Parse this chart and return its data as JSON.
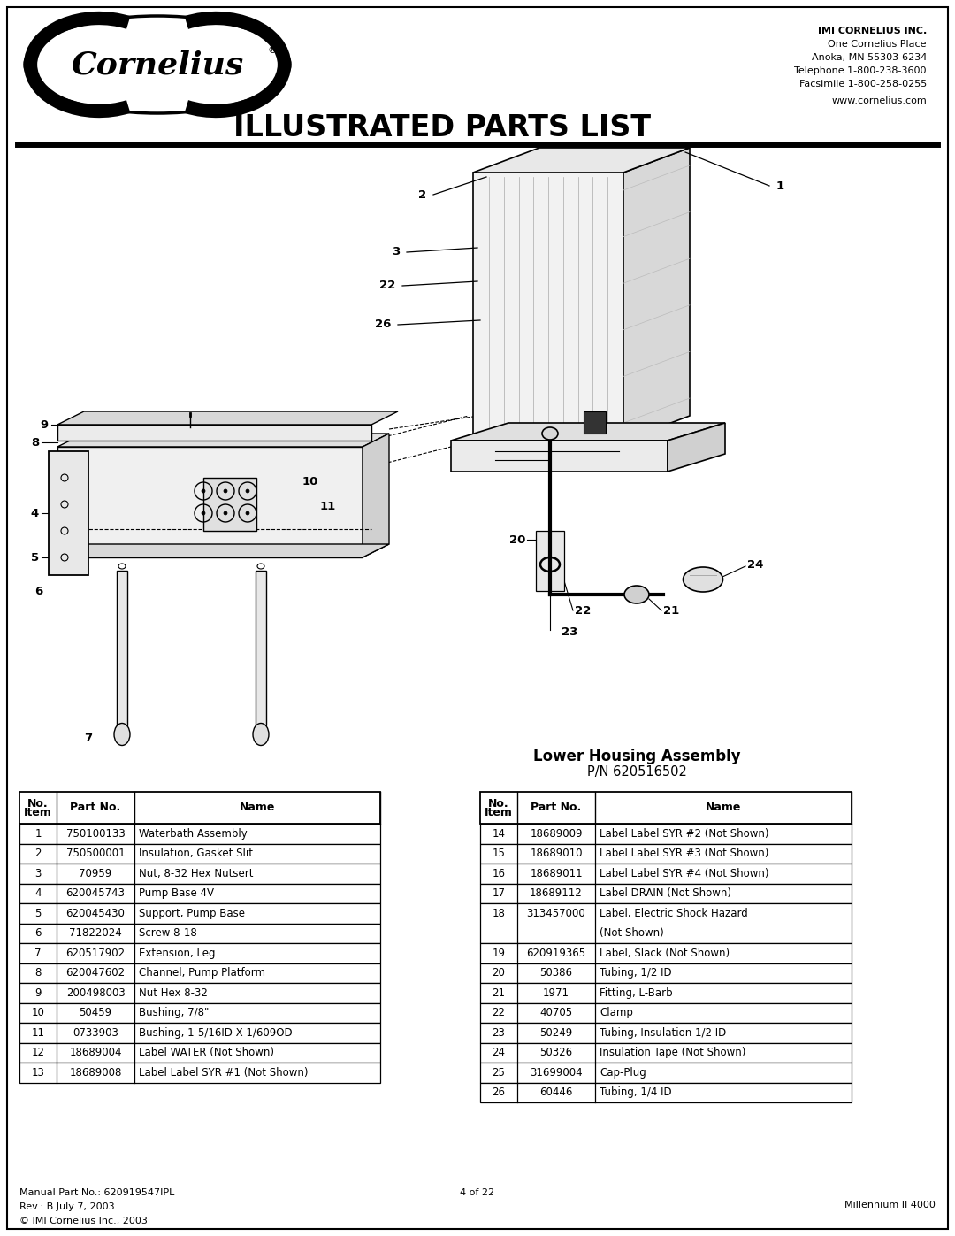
{
  "page_title": "ILLUSTRATED PARTS LIST",
  "company_name": "IMI CORNELIUS INC.",
  "company_address": "One Cornelius Place",
  "company_city": "Anoka, MN 55303-6234",
  "company_phone": "Telephone 1-800-238-3600",
  "company_fax": "Facsimile 1-800-258-0255",
  "company_web": "www.cornelius.com",
  "assembly_title": "Lower Housing Assembly",
  "assembly_pn": "P/N 620516502",
  "footer_manual": "Manual Part No.: 620919547IPL",
  "footer_page": "4 of 22",
  "footer_rev": "Rev.: B July 7, 2003",
  "footer_copy": "© IMI Cornelius Inc., 2003",
  "footer_product": "Millennium II 4000",
  "left_table": [
    [
      "1",
      "750100133",
      "Waterbath Assembly"
    ],
    [
      "2",
      "750500001",
      "Insulation, Gasket Slit"
    ],
    [
      "3",
      "70959",
      "Nut, 8-32 Hex Nutsert"
    ],
    [
      "4",
      "620045743",
      "Pump Base 4V"
    ],
    [
      "5",
      "620045430",
      "Support, Pump Base"
    ],
    [
      "6",
      "71822024",
      "Screw 8-18"
    ],
    [
      "7",
      "620517902",
      "Extension, Leg"
    ],
    [
      "8",
      "620047602",
      "Channel, Pump Platform"
    ],
    [
      "9",
      "200498003",
      "Nut Hex 8-32"
    ],
    [
      "10",
      "50459",
      "Bushing, 7/8\""
    ],
    [
      "11",
      "0733903",
      "Bushing, 1-5/16ID X 1/609OD"
    ],
    [
      "12",
      "18689004",
      "Label WATER (Not Shown)"
    ],
    [
      "13",
      "18689008",
      "Label Label SYR #1 (Not Shown)"
    ]
  ],
  "right_table": [
    [
      "14",
      "18689009",
      "Label Label SYR #2 (Not Shown)"
    ],
    [
      "15",
      "18689010",
      "Label Label SYR #3 (Not Shown)"
    ],
    [
      "16",
      "18689011",
      "Label Label SYR #4 (Not Shown)"
    ],
    [
      "17",
      "18689112",
      "Label DRAIN (Not Shown)"
    ],
    [
      "18",
      "313457000",
      "Label, Electric Shock Hazard\n(Not Shown)"
    ],
    [
      "19",
      "620919365",
      "Label, Slack (Not Shown)"
    ],
    [
      "20",
      "50386",
      "Tubing, 1/2 ID"
    ],
    [
      "21",
      "1971",
      "Fitting, L-Barb"
    ],
    [
      "22",
      "40705",
      "Clamp"
    ],
    [
      "23",
      "50249",
      "Tubing, Insulation 1/2 ID"
    ],
    [
      "24",
      "50326",
      "Insulation Tape (Not Shown)"
    ],
    [
      "25",
      "31699004",
      "Cap-Plug"
    ],
    [
      "26",
      "60446",
      "Tubing, 1/4 ID"
    ]
  ],
  "bg_color": "#ffffff",
  "border_color": "#000000"
}
